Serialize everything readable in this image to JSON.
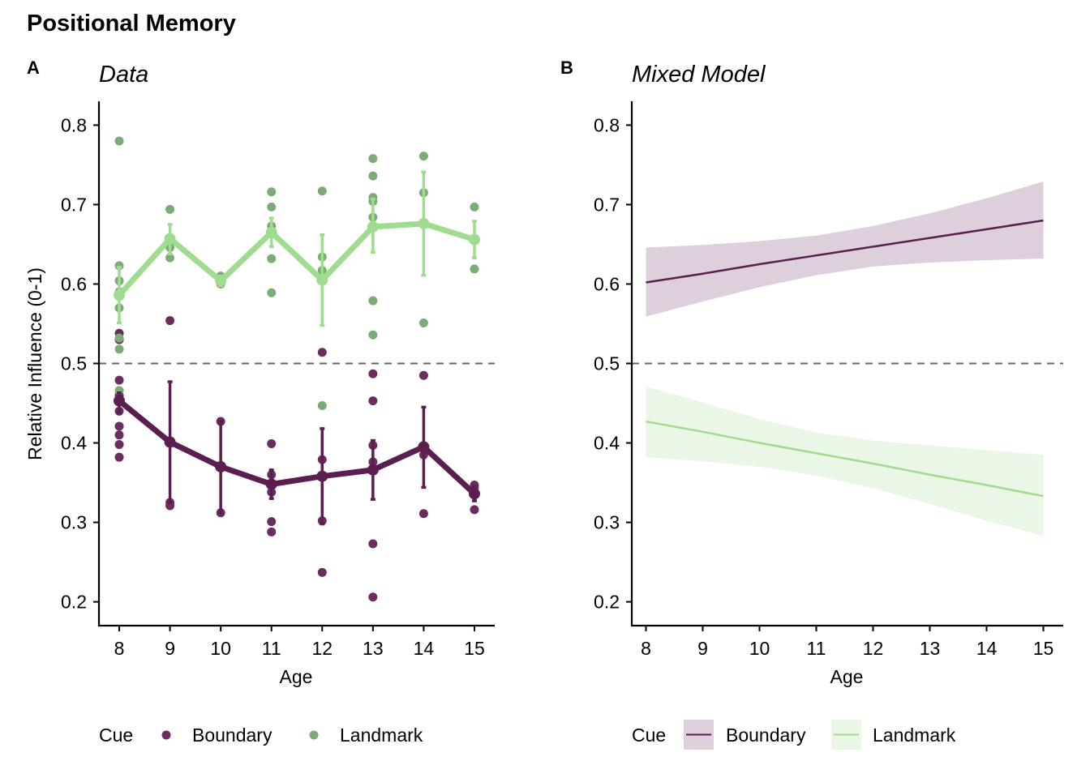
{
  "figure_title": "Positional Memory",
  "colors": {
    "boundary_point": "#6b2d5e",
    "boundary_line": "#5a1e50",
    "landmark_point": "#7dab78",
    "landmark_line": "#9fdc8f",
    "boundary_model_line": "#5a1e50",
    "boundary_ribbon": "#ddd0dc",
    "landmark_model_line": "#9fdc8f",
    "landmark_ribbon": "#eaf6e6",
    "reference_line": "#666666"
  },
  "chart_data": [
    {
      "panel_label": "A",
      "title": "Data",
      "type": "scatter",
      "xlabel": "Age",
      "ylabel": "Relative Influence (0-1)",
      "xlim": [
        7.6,
        15.4
      ],
      "ylim": [
        0.17,
        0.83
      ],
      "x_ticks": [
        "8",
        "9",
        "10",
        "11",
        "12",
        "13",
        "14",
        "15"
      ],
      "y_ticks": [
        "0.2",
        "0.3",
        "0.4",
        "0.5",
        "0.6",
        "0.7",
        "0.8"
      ],
      "reference_y": 0.5,
      "legend_title": "Cue",
      "legend_position": "bottom",
      "series": [
        {
          "name": "Boundary",
          "points": [
            [
              8,
              0.538
            ],
            [
              8,
              0.53
            ],
            [
              8,
              0.479
            ],
            [
              8,
              0.46
            ],
            [
              8,
              0.44
            ],
            [
              8,
              0.421
            ],
            [
              8,
              0.41
            ],
            [
              8,
              0.398
            ],
            [
              8,
              0.382
            ],
            [
              9,
              0.554
            ],
            [
              9,
              0.325
            ],
            [
              9,
              0.321
            ],
            [
              10,
              0.427
            ],
            [
              10,
              0.312
            ],
            [
              11,
              0.399
            ],
            [
              11,
              0.36
            ],
            [
              11,
              0.338
            ],
            [
              11,
              0.301
            ],
            [
              11,
              0.288
            ],
            [
              12,
              0.514
            ],
            [
              12,
              0.379
            ],
            [
              12,
              0.302
            ],
            [
              12,
              0.237
            ],
            [
              13,
              0.487
            ],
            [
              13,
              0.453
            ],
            [
              13,
              0.397
            ],
            [
              13,
              0.376
            ],
            [
              13,
              0.365
            ],
            [
              13,
              0.273
            ],
            [
              13,
              0.206
            ],
            [
              14,
              0.485
            ],
            [
              14,
              0.385
            ],
            [
              14,
              0.311
            ],
            [
              15,
              0.347
            ],
            [
              15,
              0.344
            ],
            [
              15,
              0.338
            ],
            [
              15,
              0.316
            ]
          ],
          "means": [
            [
              8,
              0.453
            ],
            [
              9,
              0.401
            ],
            [
              10,
              0.37
            ],
            [
              11,
              0.348
            ],
            [
              12,
              0.358
            ],
            [
              13,
              0.366
            ],
            [
              14,
              0.395
            ],
            [
              15,
              0.336
            ]
          ],
          "errors": [
            [
              0.463,
              0.438
            ],
            [
              0.477,
              0.325
            ],
            [
              0.427,
              0.312
            ],
            [
              0.366,
              0.33
            ],
            [
              0.418,
              0.298
            ],
            [
              0.403,
              0.329
            ],
            [
              0.445,
              0.344
            ],
            [
              0.345,
              0.327
            ]
          ]
        },
        {
          "name": "Landmark",
          "points": [
            [
              8,
              0.78
            ],
            [
              8,
              0.623
            ],
            [
              8,
              0.604
            ],
            [
              8,
              0.59
            ],
            [
              8,
              0.57
            ],
            [
              8,
              0.532
            ],
            [
              8,
              0.518
            ],
            [
              8,
              0.466
            ],
            [
              9,
              0.694
            ],
            [
              9,
              0.646
            ],
            [
              9,
              0.633
            ],
            [
              10,
              0.61
            ],
            [
              10,
              0.6
            ],
            [
              11,
              0.716
            ],
            [
              11,
              0.697
            ],
            [
              11,
              0.673
            ],
            [
              11,
              0.632
            ],
            [
              11,
              0.589
            ],
            [
              12,
              0.717
            ],
            [
              12,
              0.634
            ],
            [
              12,
              0.617
            ],
            [
              12,
              0.447
            ],
            [
              13,
              0.758
            ],
            [
              13,
              0.736
            ],
            [
              13,
              0.709
            ],
            [
              13,
              0.704
            ],
            [
              13,
              0.684
            ],
            [
              13,
              0.579
            ],
            [
              13,
              0.536
            ],
            [
              14,
              0.761
            ],
            [
              14,
              0.715
            ],
            [
              14,
              0.551
            ],
            [
              15,
              0.697
            ],
            [
              15,
              0.655
            ],
            [
              15,
              0.619
            ]
          ],
          "means": [
            [
              8,
              0.586
            ],
            [
              9,
              0.657
            ],
            [
              10,
              0.604
            ],
            [
              11,
              0.665
            ],
            [
              12,
              0.605
            ],
            [
              13,
              0.672
            ],
            [
              14,
              0.676
            ],
            [
              15,
              0.656
            ]
          ],
          "errors": [
            [
              0.621,
              0.551
            ],
            [
              0.675,
              0.638
            ],
            [
              0.61,
              0.598
            ],
            [
              0.683,
              0.647
            ],
            [
              0.662,
              0.548
            ],
            [
              0.707,
              0.64
            ],
            [
              0.741,
              0.611
            ],
            [
              0.679,
              0.633
            ]
          ]
        }
      ]
    },
    {
      "panel_label": "B",
      "title": "Mixed Model",
      "type": "line",
      "xlabel": "Age",
      "ylabel": "",
      "xlim": [
        7.75,
        15.35
      ],
      "ylim": [
        0.17,
        0.83
      ],
      "x_ticks": [
        "8",
        "9",
        "10",
        "11",
        "12",
        "13",
        "14",
        "15"
      ],
      "y_ticks": [
        "0.2",
        "0.3",
        "0.4",
        "0.5",
        "0.6",
        "0.7",
        "0.8"
      ],
      "reference_y": 0.5,
      "legend_title": "Cue",
      "legend_position": "bottom",
      "series": [
        {
          "name": "Boundary",
          "x": [
            8,
            9,
            10,
            11,
            12,
            13,
            14,
            15
          ],
          "fit": [
            0.602,
            0.613,
            0.625,
            0.636,
            0.647,
            0.658,
            0.669,
            0.68
          ],
          "lower": [
            0.559,
            0.578,
            0.596,
            0.611,
            0.622,
            0.627,
            0.63,
            0.632
          ],
          "upper": [
            0.646,
            0.649,
            0.654,
            0.661,
            0.673,
            0.689,
            0.708,
            0.729
          ]
        },
        {
          "name": "Landmark",
          "x": [
            8,
            9,
            10,
            11,
            12,
            13,
            14,
            15
          ],
          "fit": [
            0.427,
            0.414,
            0.4,
            0.387,
            0.374,
            0.36,
            0.347,
            0.333
          ],
          "lower": [
            0.382,
            0.377,
            0.37,
            0.359,
            0.343,
            0.323,
            0.302,
            0.283
          ],
          "upper": [
            0.471,
            0.451,
            0.43,
            0.413,
            0.403,
            0.397,
            0.391,
            0.385
          ]
        }
      ]
    }
  ]
}
